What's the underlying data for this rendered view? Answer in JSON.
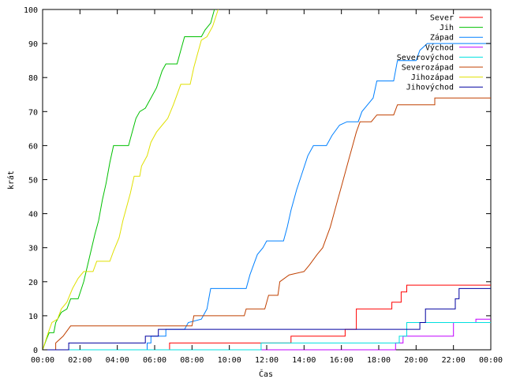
{
  "chart_data": {
    "type": "line",
    "xlabel": "Čas",
    "ylabel": "krát",
    "xlim": [
      0,
      24
    ],
    "ylim": [
      0,
      100
    ],
    "x_ticks": [
      {
        "value": 0,
        "label": "00:00"
      },
      {
        "value": 2,
        "label": "02:00"
      },
      {
        "value": 4,
        "label": "04:00"
      },
      {
        "value": 6,
        "label": "06:00"
      },
      {
        "value": 8,
        "label": "08:00"
      },
      {
        "value": 10,
        "label": "10:00"
      },
      {
        "value": 12,
        "label": "12:00"
      },
      {
        "value": 14,
        "label": "14:00"
      },
      {
        "value": 16,
        "label": "16:00"
      },
      {
        "value": 18,
        "label": "18:00"
      },
      {
        "value": 20,
        "label": "20:00"
      },
      {
        "value": 22,
        "label": "22:00"
      },
      {
        "value": 24,
        "label": "00:00"
      }
    ],
    "y_ticks": [
      0,
      10,
      20,
      30,
      40,
      50,
      60,
      70,
      80,
      90,
      100
    ],
    "grid": false,
    "legend_position": "top-right",
    "series": [
      {
        "name": "Sever",
        "color": "#ff0000",
        "points": [
          [
            0,
            0
          ],
          [
            6.8,
            0
          ],
          [
            6.8,
            2
          ],
          [
            13.3,
            2
          ],
          [
            13.3,
            4
          ],
          [
            16.2,
            4
          ],
          [
            16.2,
            6
          ],
          [
            16.8,
            6
          ],
          [
            16.8,
            12
          ],
          [
            18.7,
            12
          ],
          [
            18.7,
            14
          ],
          [
            19.2,
            14
          ],
          [
            19.2,
            17
          ],
          [
            19.5,
            17
          ],
          [
            19.5,
            19
          ],
          [
            24,
            19
          ]
        ]
      },
      {
        "name": "Jih",
        "color": "#00c000",
        "points": [
          [
            0,
            0
          ],
          [
            0.2,
            3
          ],
          [
            0.35,
            5
          ],
          [
            0.6,
            5
          ],
          [
            0.7,
            8
          ],
          [
            1.0,
            11
          ],
          [
            1.3,
            12
          ],
          [
            1.5,
            15
          ],
          [
            1.9,
            15
          ],
          [
            2.2,
            20
          ],
          [
            2.5,
            27
          ],
          [
            2.8,
            34
          ],
          [
            3.0,
            38
          ],
          [
            3.2,
            44
          ],
          [
            3.4,
            49
          ],
          [
            3.6,
            55
          ],
          [
            3.8,
            60
          ],
          [
            4.6,
            60
          ],
          [
            4.75,
            63
          ],
          [
            5.0,
            68
          ],
          [
            5.2,
            70
          ],
          [
            5.5,
            71
          ],
          [
            5.8,
            74
          ],
          [
            6.1,
            77
          ],
          [
            6.4,
            82
          ],
          [
            6.6,
            84
          ],
          [
            7.2,
            84
          ],
          [
            7.4,
            88
          ],
          [
            7.6,
            92
          ],
          [
            8.5,
            92
          ],
          [
            8.7,
            94
          ],
          [
            9.0,
            96
          ],
          [
            9.2,
            100
          ]
        ]
      },
      {
        "name": "Západ",
        "color": "#0080ff",
        "points": [
          [
            0,
            0
          ],
          [
            5.6,
            0
          ],
          [
            5.6,
            2
          ],
          [
            5.8,
            2
          ],
          [
            5.8,
            4
          ],
          [
            6.6,
            4
          ],
          [
            6.6,
            6
          ],
          [
            7.6,
            6
          ],
          [
            7.8,
            8
          ],
          [
            8.5,
            9
          ],
          [
            8.8,
            12
          ],
          [
            8.9,
            15
          ],
          [
            9.0,
            18
          ],
          [
            10.9,
            18
          ],
          [
            11.1,
            22
          ],
          [
            11.3,
            25
          ],
          [
            11.5,
            28
          ],
          [
            11.8,
            30
          ],
          [
            12.0,
            32
          ],
          [
            12.9,
            32
          ],
          [
            13.1,
            36
          ],
          [
            13.3,
            41
          ],
          [
            13.6,
            47
          ],
          [
            13.9,
            52
          ],
          [
            14.2,
            57
          ],
          [
            14.5,
            60
          ],
          [
            15.2,
            60
          ],
          [
            15.5,
            63
          ],
          [
            15.9,
            66
          ],
          [
            16.3,
            67
          ],
          [
            16.9,
            67
          ],
          [
            17.1,
            70
          ],
          [
            17.4,
            72
          ],
          [
            17.7,
            74
          ],
          [
            17.9,
            79
          ],
          [
            18.8,
            79
          ],
          [
            19.0,
            85
          ],
          [
            20.0,
            85
          ],
          [
            20.2,
            88
          ],
          [
            20.6,
            90
          ],
          [
            24,
            90
          ]
        ]
      },
      {
        "name": "Východ",
        "color": "#c000ff",
        "points": [
          [
            0,
            0
          ],
          [
            18.9,
            0
          ],
          [
            18.9,
            2
          ],
          [
            19.3,
            2
          ],
          [
            19.3,
            4
          ],
          [
            22.0,
            4
          ],
          [
            22.0,
            8
          ],
          [
            23.2,
            8
          ],
          [
            23.2,
            9
          ],
          [
            24,
            9
          ]
        ]
      },
      {
        "name": "Severovýchod",
        "color": "#00e0e0",
        "points": [
          [
            0,
            0
          ],
          [
            11.7,
            0
          ],
          [
            11.7,
            2
          ],
          [
            19.1,
            2
          ],
          [
            19.1,
            4
          ],
          [
            19.5,
            4
          ],
          [
            19.5,
            8
          ],
          [
            24,
            8
          ]
        ]
      },
      {
        "name": "Severozápad",
        "color": "#c04000",
        "points": [
          [
            0,
            0
          ],
          [
            0.7,
            0
          ],
          [
            0.7,
            2
          ],
          [
            1.1,
            4
          ],
          [
            1.5,
            7
          ],
          [
            8.0,
            7
          ],
          [
            8.1,
            10
          ],
          [
            10.8,
            10
          ],
          [
            10.9,
            12
          ],
          [
            11.9,
            12
          ],
          [
            12.1,
            16
          ],
          [
            12.6,
            16
          ],
          [
            12.7,
            20
          ],
          [
            13.2,
            22
          ],
          [
            14.0,
            23
          ],
          [
            14.3,
            25
          ],
          [
            14.7,
            28
          ],
          [
            15.0,
            30
          ],
          [
            15.2,
            33
          ],
          [
            15.4,
            36
          ],
          [
            15.6,
            40
          ],
          [
            15.8,
            44
          ],
          [
            16.0,
            48
          ],
          [
            16.2,
            52
          ],
          [
            16.4,
            56
          ],
          [
            16.6,
            60
          ],
          [
            16.8,
            64
          ],
          [
            17.0,
            67
          ],
          [
            17.6,
            67
          ],
          [
            17.9,
            69
          ],
          [
            18.8,
            69
          ],
          [
            19.0,
            72
          ],
          [
            21.0,
            72
          ],
          [
            21.0,
            74
          ],
          [
            24,
            74
          ]
        ]
      },
      {
        "name": "Jihozápad",
        "color": "#e0e000",
        "points": [
          [
            0,
            0
          ],
          [
            0.3,
            5
          ],
          [
            0.5,
            8
          ],
          [
            0.8,
            9
          ],
          [
            1.0,
            12
          ],
          [
            1.3,
            14
          ],
          [
            1.6,
            18
          ],
          [
            1.9,
            21
          ],
          [
            2.2,
            23
          ],
          [
            2.7,
            23
          ],
          [
            2.9,
            26
          ],
          [
            3.6,
            26
          ],
          [
            3.8,
            29
          ],
          [
            4.1,
            33
          ],
          [
            4.3,
            38
          ],
          [
            4.5,
            42
          ],
          [
            4.7,
            46
          ],
          [
            4.9,
            51
          ],
          [
            5.2,
            51
          ],
          [
            5.3,
            54
          ],
          [
            5.6,
            57
          ],
          [
            5.8,
            61
          ],
          [
            6.1,
            64
          ],
          [
            6.4,
            66
          ],
          [
            6.7,
            68
          ],
          [
            7.0,
            72
          ],
          [
            7.2,
            75
          ],
          [
            7.4,
            78
          ],
          [
            7.9,
            78
          ],
          [
            8.1,
            83
          ],
          [
            8.3,
            87
          ],
          [
            8.5,
            91
          ],
          [
            8.8,
            92
          ],
          [
            9.1,
            95
          ],
          [
            9.4,
            100
          ]
        ]
      },
      {
        "name": "Jihovýchod",
        "color": "#0000a0",
        "points": [
          [
            0,
            0
          ],
          [
            1.4,
            0
          ],
          [
            1.4,
            2
          ],
          [
            5.5,
            2
          ],
          [
            5.5,
            4
          ],
          [
            6.2,
            4
          ],
          [
            6.2,
            6
          ],
          [
            20.2,
            6
          ],
          [
            20.2,
            8
          ],
          [
            20.5,
            8
          ],
          [
            20.5,
            12
          ],
          [
            22.1,
            12
          ],
          [
            22.1,
            15
          ],
          [
            22.3,
            15
          ],
          [
            22.3,
            18
          ],
          [
            24,
            18
          ]
        ]
      }
    ]
  }
}
